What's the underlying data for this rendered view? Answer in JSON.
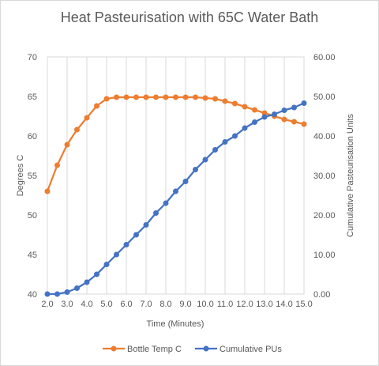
{
  "chart_data": {
    "type": "line",
    "title": "Heat Pasteurisation with 65C Water Bath",
    "xlabel": "Time (Minutes)",
    "ylabel_left": "Degrees  C",
    "ylabel_right": "Cumulative Pasteurisation Units",
    "x_ticks": [
      "2.0",
      "3.0",
      "4.0",
      "5.0",
      "6.0",
      "7.0",
      "8.0",
      "9.0",
      "10.0",
      "11.0",
      "12.0",
      "13.0",
      "14.0",
      "15.0"
    ],
    "y_left_ticks": [
      "40",
      "45",
      "50",
      "55",
      "60",
      "65",
      "70"
    ],
    "y_right_ticks": [
      "0.00",
      "10.00",
      "20.00",
      "30.00",
      "40.00",
      "50.00",
      "60.00"
    ],
    "xlim": [
      2,
      15
    ],
    "ylim_left": [
      40,
      70
    ],
    "ylim_right": [
      0,
      60
    ],
    "grid": "vertical",
    "legend_position": "bottom",
    "x": [
      2.0,
      2.5,
      3.0,
      3.5,
      4.0,
      4.5,
      5.0,
      5.5,
      6.0,
      6.5,
      7.0,
      7.5,
      8.0,
      8.5,
      9.0,
      9.5,
      10.0,
      10.5,
      11.0,
      11.5,
      12.0,
      12.5,
      13.0,
      13.5,
      14.0,
      14.5,
      15.0
    ],
    "series": [
      {
        "name": "Bottle Temp C",
        "axis": "left",
        "color": "#ED7D31",
        "values": [
          53.0,
          56.3,
          58.9,
          60.8,
          62.3,
          63.8,
          64.7,
          64.9,
          64.9,
          64.9,
          64.9,
          64.9,
          64.9,
          64.9,
          64.9,
          64.9,
          64.8,
          64.7,
          64.4,
          64.1,
          63.7,
          63.3,
          62.9,
          62.5,
          62.1,
          61.8,
          61.5
        ]
      },
      {
        "name": "Cumulative PUs",
        "axis": "right",
        "color": "#4472C4",
        "values": [
          0.0,
          0.0,
          0.5,
          1.5,
          3.0,
          5.0,
          7.5,
          10.0,
          12.5,
          15.0,
          17.5,
          20.5,
          23.0,
          26.0,
          28.5,
          31.5,
          34.0,
          36.5,
          38.5,
          40.0,
          42.0,
          43.5,
          44.8,
          45.5,
          46.5,
          47.2,
          48.3
        ]
      }
    ]
  }
}
